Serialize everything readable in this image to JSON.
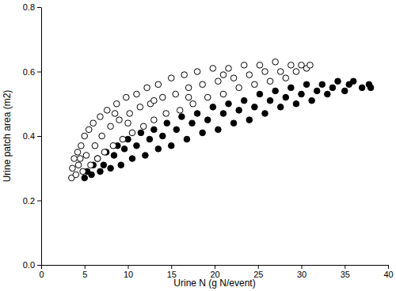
{
  "chart_data": {
    "type": "scatter",
    "x_label": "Urine N (g N/event)",
    "y_label": "Urine patch area (m2)",
    "xlim": [
      0,
      40
    ],
    "xticks": [
      0,
      5,
      10,
      15,
      20,
      25,
      30,
      35,
      40
    ],
    "ylim": [
      0,
      0.8
    ],
    "yticks": [
      {
        "value": 0,
        "label": "0.0"
      },
      0.2,
      0.4,
      0.6,
      0.8
    ],
    "series": [
      {
        "color": "#000000",
        "marker": "circle",
        "x": [
          5.0,
          5.3,
          5.8,
          6.0,
          6.5,
          6.8,
          7.2,
          7.5,
          8.0,
          8.4,
          8.8,
          9.2,
          9.6,
          10.0,
          10.5,
          11.0,
          11.5,
          12.0,
          12.5,
          13.0,
          13.5,
          14.0,
          14.5,
          15.0,
          15.6,
          16.2,
          16.8,
          17.4,
          18.0,
          18.6,
          19.2,
          19.8,
          20.4,
          21.0,
          21.6,
          22.2,
          22.8,
          23.4,
          24.0,
          24.6,
          25.2,
          25.8,
          26.4,
          27.0,
          27.6,
          28.2,
          28.8,
          29.4,
          30.0,
          30.6,
          31.2,
          31.8,
          32.4,
          33.0,
          33.6,
          34.2,
          35.0,
          35.5,
          36.0,
          37.0,
          37.8,
          38.0
        ],
        "values": [
          0.27,
          0.29,
          0.28,
          0.31,
          0.33,
          0.29,
          0.31,
          0.35,
          0.3,
          0.34,
          0.37,
          0.31,
          0.36,
          0.39,
          0.33,
          0.37,
          0.41,
          0.34,
          0.39,
          0.42,
          0.36,
          0.4,
          0.44,
          0.37,
          0.42,
          0.46,
          0.39,
          0.44,
          0.47,
          0.41,
          0.45,
          0.49,
          0.42,
          0.47,
          0.5,
          0.44,
          0.48,
          0.51,
          0.45,
          0.49,
          0.53,
          0.47,
          0.51,
          0.54,
          0.49,
          0.52,
          0.55,
          0.5,
          0.53,
          0.56,
          0.51,
          0.54,
          0.56,
          0.53,
          0.55,
          0.57,
          0.54,
          0.56,
          0.57,
          0.55,
          0.56,
          0.55
        ]
      },
      {
        "color": "#000000",
        "marker": "circle-open",
        "x": [
          3.5,
          3.6,
          3.8,
          4.0,
          4.2,
          4.3,
          4.5,
          4.6,
          4.8,
          5.0,
          5.2,
          5.5,
          5.7,
          6.0,
          6.2,
          6.5,
          6.8,
          7.0,
          7.3,
          7.6,
          8.0,
          8.3,
          8.5,
          8.7,
          9.0,
          9.4,
          9.8,
          10.0,
          10.2,
          10.5,
          11.0,
          11.4,
          11.8,
          12.2,
          12.6,
          13.0,
          13.0,
          13.5,
          14.0,
          14.4,
          15.0,
          15.5,
          16.0,
          16.5,
          17.0,
          17.0,
          17.5,
          18.0,
          18.6,
          19.2,
          19.8,
          20.4,
          21.0,
          21.0,
          21.6,
          22.2,
          22.8,
          23.4,
          24.0,
          24.6,
          25.2,
          25.8,
          26.4,
          27.0,
          27.6,
          28.2,
          28.8,
          29.4,
          30.0,
          30.6,
          31.0
        ],
        "values": [
          0.27,
          0.3,
          0.33,
          0.28,
          0.35,
          0.31,
          0.33,
          0.37,
          0.29,
          0.4,
          0.34,
          0.42,
          0.31,
          0.44,
          0.37,
          0.33,
          0.46,
          0.4,
          0.35,
          0.48,
          0.43,
          0.37,
          0.47,
          0.5,
          0.45,
          0.39,
          0.52,
          0.44,
          0.47,
          0.41,
          0.53,
          0.49,
          0.43,
          0.55,
          0.5,
          0.45,
          0.51,
          0.56,
          0.52,
          0.47,
          0.58,
          0.53,
          0.48,
          0.59,
          0.55,
          0.52,
          0.5,
          0.6,
          0.56,
          0.52,
          0.61,
          0.57,
          0.53,
          0.59,
          0.61,
          0.58,
          0.55,
          0.62,
          0.59,
          0.56,
          0.62,
          0.6,
          0.57,
          0.63,
          0.6,
          0.58,
          0.62,
          0.6,
          0.62,
          0.61,
          0.62
        ]
      }
    ]
  }
}
